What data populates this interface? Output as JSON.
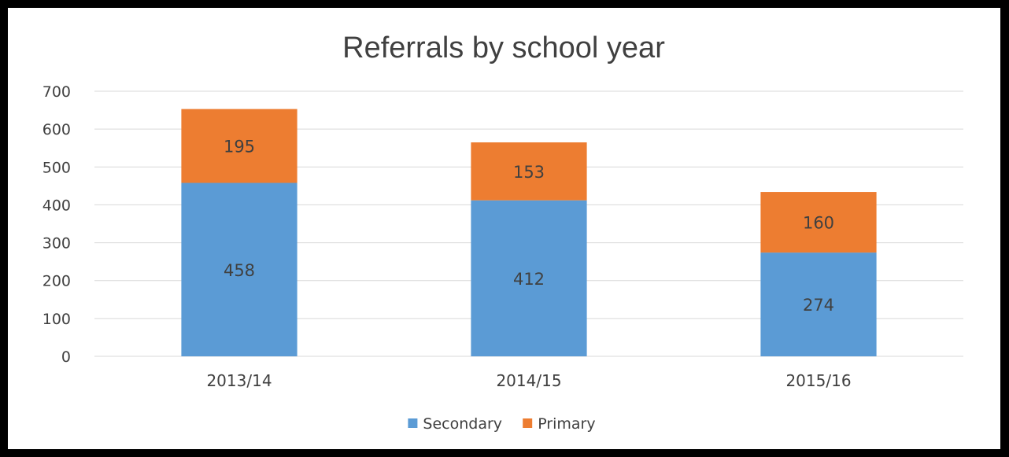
{
  "chart_data": {
    "type": "bar",
    "stacked": true,
    "title": "Referrals by school year",
    "categories": [
      "2013/14",
      "2014/15",
      "2015/16"
    ],
    "series": [
      {
        "name": "Secondary",
        "values": [
          458,
          412,
          274
        ],
        "color": "#5b9bd5"
      },
      {
        "name": "Primary",
        "values": [
          195,
          153,
          160
        ],
        "color": "#ed7d31"
      }
    ],
    "y_ticks": [
      "0",
      "100",
      "200",
      "300",
      "400",
      "500",
      "600",
      "700"
    ],
    "ylim": [
      0,
      700
    ],
    "grid": true,
    "legend_position": "bottom"
  }
}
